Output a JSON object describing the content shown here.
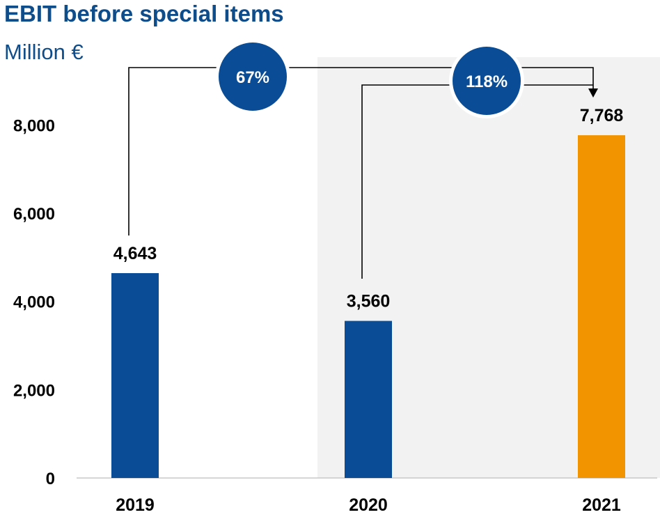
{
  "chart_data": {
    "type": "bar",
    "title": "EBIT before special items",
    "subtitle": "Million €",
    "categories": [
      "2019",
      "2020",
      "2021"
    ],
    "values": [
      4643,
      3560,
      7768
    ],
    "data_labels": [
      "4,643",
      "3,560",
      "7,768"
    ],
    "bar_colors": [
      "#0a4d96",
      "#0a4d96",
      "#f29400"
    ],
    "ylim": [
      0,
      8800
    ],
    "yticks": [
      0,
      2000,
      4000,
      6000,
      8000
    ],
    "ytick_labels": [
      "0",
      "2,000",
      "4,000",
      "6,000",
      "8,000"
    ],
    "highlight_band_color": "#f2f2f2",
    "grid": false,
    "growth_annotations": [
      {
        "label": "67%",
        "from": "2019",
        "to": "2021"
      },
      {
        "label": "118%",
        "from": "2020",
        "to": "2021"
      }
    ],
    "accent_color": "#0a4d96"
  }
}
